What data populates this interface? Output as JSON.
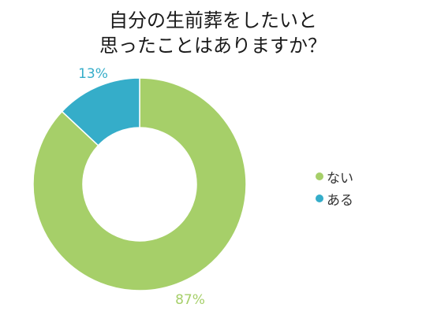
{
  "chart_data": {
    "type": "pie",
    "title_lines": [
      "自分の生前葬をしたいと",
      "思ったことはありますか？"
    ],
    "slices": [
      {
        "name": "ない",
        "value": 87,
        "label": "87%",
        "color": "#a6cf69"
      },
      {
        "name": "ある",
        "value": 13,
        "label": "13%",
        "color": "#35adc9"
      }
    ],
    "legend_placement": "right",
    "donut": true
  }
}
